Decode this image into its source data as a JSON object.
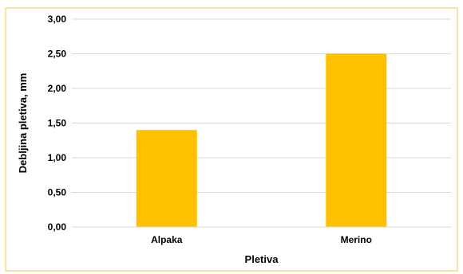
{
  "chart_data": {
    "type": "bar",
    "categories": [
      "Alpaka",
      "Merino"
    ],
    "values": [
      1.4,
      2.5
    ],
    "title": "",
    "xlabel": "Pletiva",
    "ylabel": "Debljina pletiva, mm",
    "ylim": [
      0,
      3
    ],
    "yticks": [
      "0,00",
      "0,50",
      "1,00",
      "1,50",
      "2,00",
      "2,50",
      "3,00"
    ],
    "grid": true,
    "legend": "none",
    "bar_color": "#FFC000",
    "border_color": "#F2C94C"
  }
}
